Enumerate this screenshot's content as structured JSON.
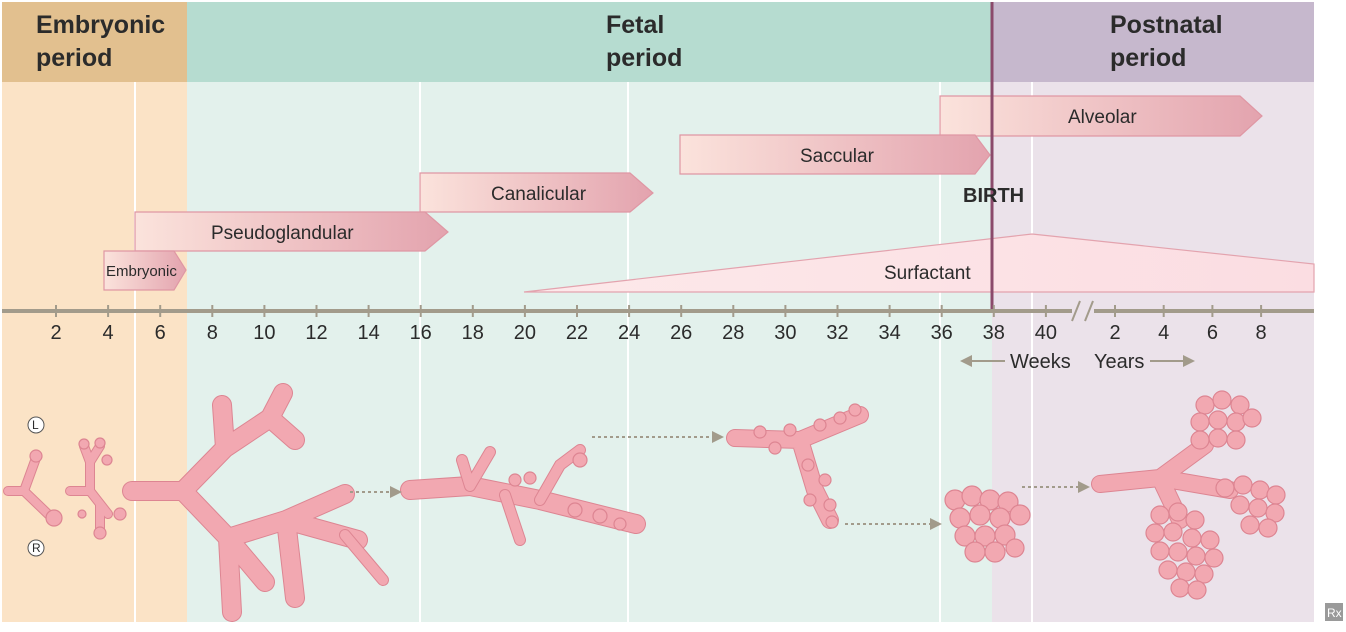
{
  "periods": {
    "embryonic": "Embryonic period",
    "embryonic_l1": "Embryonic",
    "embryonic_l2": "period",
    "fetal_l1": "Fetal",
    "fetal_l2": "period",
    "postnatal_l1": "Postnatal",
    "postnatal_l2": "period"
  },
  "stages": {
    "alveolar": "Alveolar",
    "saccular": "Saccular",
    "canalicular": "Canalicular",
    "pseudoglandular": "Pseudoglandular",
    "embryonic": "Embryonic",
    "surfactant": "Surfactant"
  },
  "birth_label": "BIRTH",
  "axis": {
    "week_ticks": [
      "2",
      "4",
      "6",
      "8",
      "10",
      "12",
      "14",
      "16",
      "18",
      "20",
      "22",
      "24",
      "26",
      "28",
      "30",
      "32",
      "34",
      "36",
      "38",
      "40"
    ],
    "year_ticks": [
      "2",
      "4",
      "6",
      "8"
    ],
    "weeks_label": "Weeks",
    "years_label": "Years"
  },
  "side_labels": {
    "left": "L",
    "right": "R"
  },
  "corner_mark": "Rx",
  "colors": {
    "embryonic_header": "#e2c08f",
    "embryonic_bg": "#fbe3c6",
    "fetal_header": "#b6dcd0",
    "fetal_bg": "#e3f1ec",
    "postnatal_header": "#c6b8cd",
    "postnatal_bg": "#ebe2ea",
    "stage_bar_start": "#fbe2db",
    "stage_bar_end": "#e5a6b1",
    "birth_line": "#8b4a6b",
    "axis": "#a29b8b",
    "lung": "#f2a8b1"
  }
}
